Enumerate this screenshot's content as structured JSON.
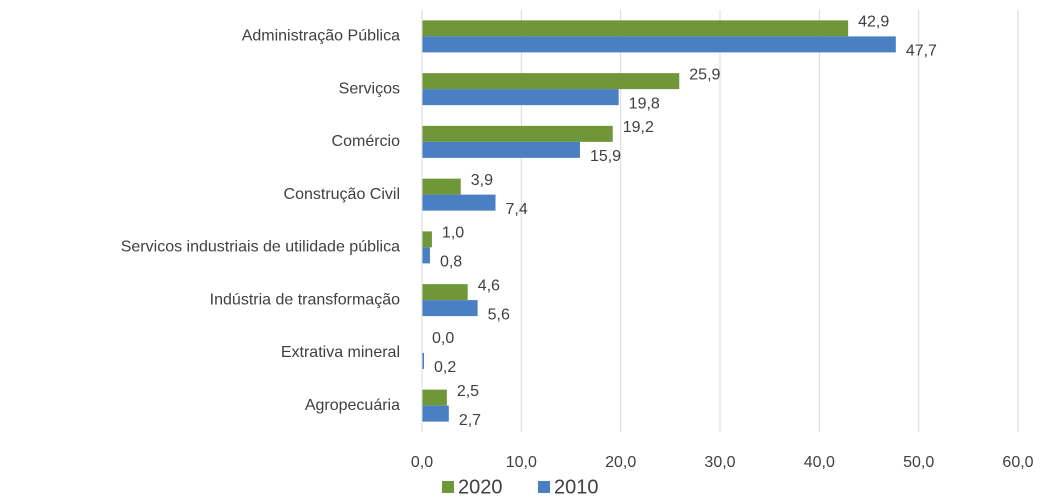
{
  "chart_data": {
    "type": "hbar",
    "categories": [
      "Administração Pública",
      "Serviços",
      "Comércio",
      "Construção Civil",
      "Servicos industriais de utilidade pública",
      "Indústria de transformação",
      "Extrativa mineral",
      "Agropecuária"
    ],
    "series": [
      {
        "name": "2020",
        "color": "#70963a",
        "values": [
          42.9,
          25.9,
          19.2,
          3.9,
          1.0,
          4.6,
          0.0,
          2.5
        ],
        "value_labels": [
          "42,9",
          "25,9",
          "19,2",
          "3,9",
          "1,0",
          "4,6",
          "0,0",
          "2,5"
        ]
      },
      {
        "name": "2010",
        "color": "#4a7fc4",
        "values": [
          47.7,
          19.8,
          15.9,
          7.4,
          0.8,
          5.6,
          0.2,
          2.7
        ],
        "value_labels": [
          "47,7",
          "19,8",
          "15,9",
          "7,4",
          "0,8",
          "5,6",
          "0,2",
          "2,7"
        ]
      }
    ],
    "xlim": [
      0,
      60
    ],
    "xticks": [
      {
        "value": 0,
        "label": "0,0"
      },
      {
        "value": 10,
        "label": "10,0"
      },
      {
        "value": 20,
        "label": "20,0"
      },
      {
        "value": 30,
        "label": "30,0"
      },
      {
        "value": 40,
        "label": "40,0"
      },
      {
        "value": 50,
        "label": "50,0"
      },
      {
        "value": 60,
        "label": "60,0"
      }
    ],
    "grid": true,
    "legend": "bottom"
  }
}
